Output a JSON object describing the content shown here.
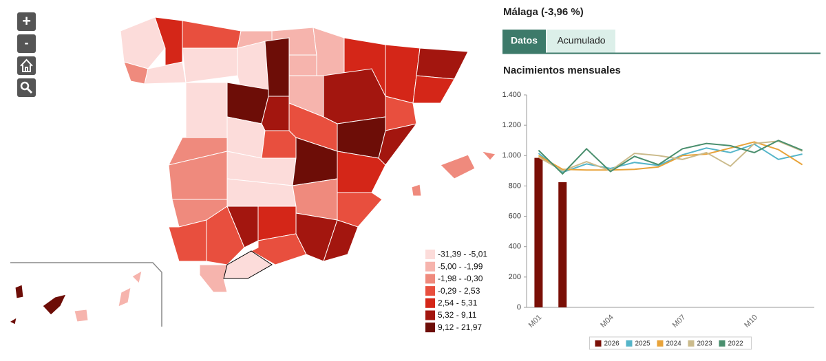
{
  "map_controls": [
    "+",
    "-"
  ],
  "map_legend": [
    {
      "label": "-31,39 - -5,01",
      "color": "#fcdcda"
    },
    {
      "label": "-5,00 - -1,99",
      "color": "#f6b4ad"
    },
    {
      "label": "-1,98 - -0,30",
      "color": "#ef8a7d"
    },
    {
      "label": "-0,29 - 2,53",
      "color": "#e84f3e"
    },
    {
      "label": "2,54 - 5,31",
      "color": "#d42618"
    },
    {
      "label": "5,32 - 9,11",
      "color": "#a3160f"
    },
    {
      "label": "9,12 - 21,97",
      "color": "#6d0d07"
    }
  ],
  "selection_title": "Málaga (-3,96 %)",
  "tabs": [
    "Datos",
    "Acumulado"
  ],
  "chart_data": {
    "type": "combo",
    "title": "Nacimientos mensuales",
    "categories": [
      "M01",
      null,
      null,
      "M04",
      null,
      null,
      "M07",
      null,
      null,
      "M10",
      null,
      null
    ],
    "ylim": [
      0,
      1400
    ],
    "yticks": [
      0,
      200,
      400,
      600,
      800,
      {
        "value": 1000,
        "label": "1.000"
      },
      {
        "value": 1200,
        "label": "1.200"
      },
      {
        "value": 1400,
        "label": "1.400"
      }
    ],
    "grid": false,
    "series": [
      {
        "name": "2026",
        "type": "bar",
        "color": "#7a0f06",
        "values": [
          985,
          825,
          null,
          null,
          null,
          null,
          null,
          null,
          null,
          null,
          null,
          null
        ]
      },
      {
        "name": "2025",
        "type": "line",
        "color": "#55b5c9",
        "values": [
          1015,
          890,
          945,
          915,
          955,
          935,
          1005,
          1050,
          1020,
          1075,
          975,
          1010
        ]
      },
      {
        "name": "2024",
        "type": "line",
        "color": "#e8a33a",
        "values": [
          1000,
          910,
          905,
          905,
          910,
          925,
          1000,
          1010,
          1050,
          1090,
          1040,
          940
        ]
      },
      {
        "name": "2023",
        "type": "line",
        "color": "#cbbb8c",
        "values": [
          990,
          900,
          960,
          900,
          1015,
          1000,
          975,
          1020,
          930,
          1080,
          1095,
          1030
        ]
      },
      {
        "name": "2022",
        "type": "line",
        "color": "#4a8f6e",
        "values": [
          1035,
          880,
          1045,
          895,
          995,
          940,
          1045,
          1080,
          1065,
          1020,
          1100,
          1035
        ]
      }
    ]
  }
}
